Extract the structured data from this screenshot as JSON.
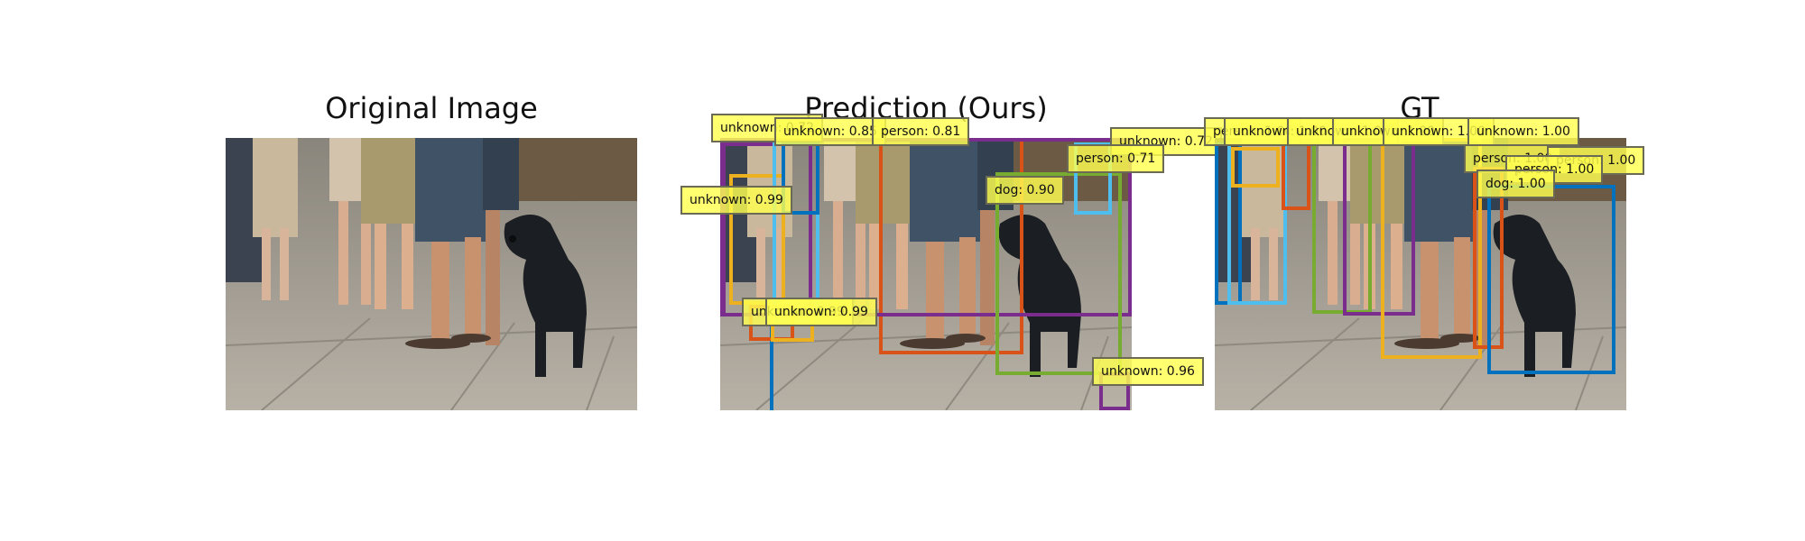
{
  "panels": {
    "original": {
      "title": "Original Image"
    },
    "prediction": {
      "title": "Prediction (Ours)"
    },
    "gt": {
      "title": "GT"
    }
  },
  "prediction_labels": [
    "unknown: 0.72",
    "unknown: 0.85",
    "person: 0.81",
    "unknown: 0.72",
    "person: 0.71",
    "unknown: 0.99",
    "dog: 0.90",
    "unknown: 0.99",
    "unknown: 0.99",
    "unknown: 0.96"
  ],
  "gt_labels": [
    "person: 1.00",
    "unknown: 1.00",
    "unknown: 1.00",
    "unknown: 1.00",
    "unknown: 1.00",
    "unknown: 1.00",
    "person: 1.00",
    "person: 1.00",
    "person: 1.00",
    "dog: 1.00"
  ],
  "colors": {
    "purple": "#7b2d8e",
    "blue": "#0072bd",
    "light_blue": "#4dbeee",
    "orange": "#d95319",
    "yellow": "#edb120",
    "green": "#77ac30",
    "label_fill": "#ffff50"
  }
}
